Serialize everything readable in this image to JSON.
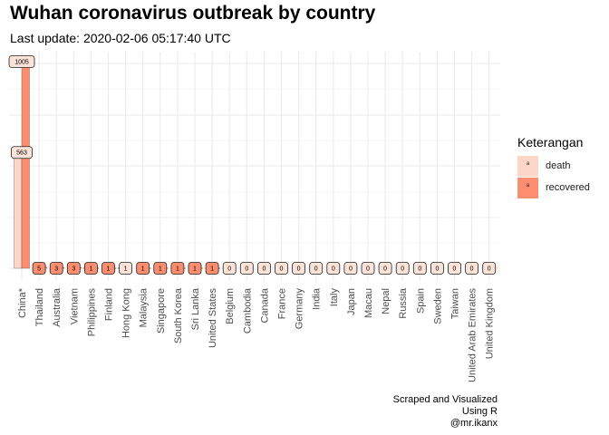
{
  "title": "Wuhan coronavirus outbreak by country",
  "subtitle": "Last update: 2020-02-06 05:17:40 UTC",
  "caption": [
    "Scraped and Visualized",
    "Using R",
    "@mr.ikanx"
  ],
  "legend": {
    "title": "Keterangan",
    "items": [
      {
        "label": "death",
        "color": "#fcd6c7"
      },
      {
        "label": "recovered",
        "color": "#fc8d6e"
      }
    ]
  },
  "colors": {
    "death": "#fcd6c7",
    "recovered": "#fc8d6e",
    "grid": "#ebebeb",
    "label_fill": "#fbe3d8"
  },
  "chart_data": {
    "type": "bar",
    "categories": [
      "China*",
      "Thailand",
      "Australia",
      "Vietnam",
      "Philippines",
      "Finland",
      "Hong Kong",
      "Malaysia",
      "Singapore",
      "South Korea",
      "Sri Lanka",
      "United States",
      "Belgium",
      "Cambodia",
      "Canada",
      "France",
      "Germany",
      "India",
      "Italy",
      "Japan",
      "Macau",
      "Nepal",
      "Russia",
      "Spain",
      "Sweden",
      "Taiwan",
      "United Arab Emirates",
      "United Kingdom"
    ],
    "series": [
      {
        "name": "death",
        "values": [
          563,
          0,
          0,
          0,
          1,
          0,
          1,
          0,
          0,
          0,
          0,
          0,
          0,
          0,
          0,
          0,
          0,
          0,
          0,
          0,
          0,
          0,
          0,
          0,
          0,
          0,
          0,
          0
        ]
      },
      {
        "name": "recovered",
        "values": [
          1005,
          5,
          3,
          3,
          1,
          1,
          0,
          1,
          1,
          1,
          1,
          1,
          0,
          0,
          0,
          0,
          0,
          0,
          0,
          0,
          0,
          0,
          0,
          0,
          0,
          0,
          0,
          0
        ]
      }
    ],
    "ylim": [
      0,
      1005
    ],
    "grid": true,
    "legend_position": "right"
  }
}
